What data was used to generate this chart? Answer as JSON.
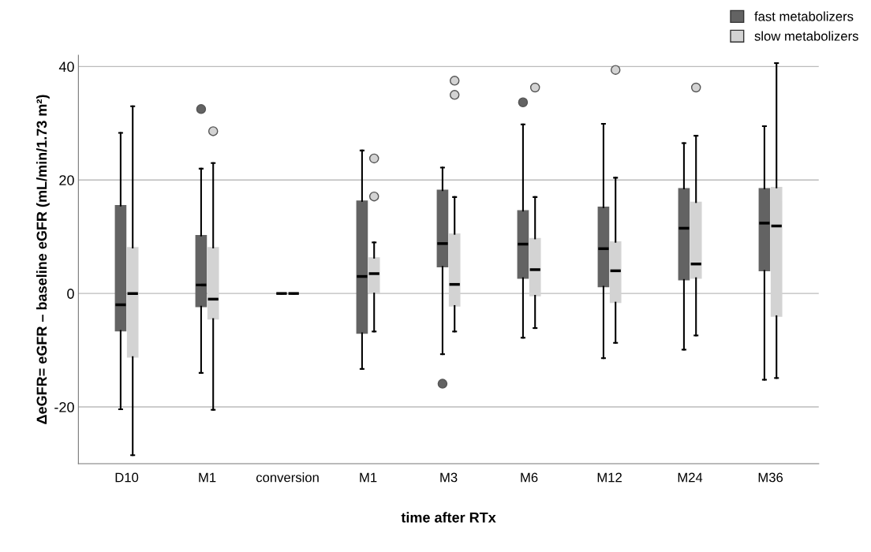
{
  "chart_data": {
    "type": "box",
    "xlabel": "time after RTx",
    "ylabel": "ΔeGFR= eGFR – baseline eGFR (mL/min/1.73 m²)",
    "categories": [
      "D10",
      "M1",
      "conversion",
      "M1",
      "M3",
      "M6",
      "M12",
      "M24",
      "M36"
    ],
    "ylim": [
      -30,
      42
    ],
    "yticks": [
      -20,
      0,
      20,
      40
    ],
    "grid": "y",
    "legend": "top right",
    "series": [
      {
        "name": "fast metabolizers",
        "color": "#636363",
        "boxes": [
          {
            "low": -20.4,
            "q1": -6.6,
            "median": -2,
            "q3": 15.5,
            "high": 28.3
          },
          {
            "low": -14,
            "q1": -2.3,
            "median": 1.5,
            "q3": 10.2,
            "high": 22,
            "outliers": [
              32.5
            ]
          },
          {
            "low": 0,
            "q1": 0,
            "median": 0,
            "q3": 0,
            "high": 0
          },
          {
            "low": -13.3,
            "q1": -7,
            "median": 3,
            "q3": 16.3,
            "high": 25.2
          },
          {
            "low": -10.7,
            "q1": 4.7,
            "median": 8.8,
            "q3": 18.2,
            "high": 22.2,
            "outliers": [
              -15.9
            ]
          },
          {
            "low": -7.8,
            "q1": 2.7,
            "median": 8.7,
            "q3": 14.6,
            "high": 29.8,
            "outliers": [
              33.7
            ]
          },
          {
            "low": -11.4,
            "q1": 1.2,
            "median": 7.9,
            "q3": 15.2,
            "high": 29.9
          },
          {
            "low": -9.9,
            "q1": 2.4,
            "median": 11.5,
            "q3": 18.5,
            "high": 26.5
          },
          {
            "low": -15.2,
            "q1": 4,
            "median": 12.4,
            "q3": 18.5,
            "high": 29.5
          }
        ]
      },
      {
        "name": "slow metabolizers",
        "color": "#d3d3d3",
        "boxes": [
          {
            "low": -28.5,
            "q1": -11.2,
            "median": 0,
            "q3": 8.1,
            "high": 33
          },
          {
            "low": -20.5,
            "q1": -4.5,
            "median": -1,
            "q3": 8.1,
            "high": 23,
            "outliers": [
              28.6
            ]
          },
          {
            "low": 0,
            "q1": 0,
            "median": 0,
            "q3": 0,
            "high": 0
          },
          {
            "low": -6.7,
            "q1": 0,
            "median": 3.5,
            "q3": 6.3,
            "high": 9,
            "outliers": [
              23.8,
              17.1
            ]
          },
          {
            "low": -6.7,
            "q1": -2.2,
            "median": 1.6,
            "q3": 10.5,
            "high": 17,
            "outliers": [
              37.5,
              35
            ]
          },
          {
            "low": -6.1,
            "q1": -0.4,
            "median": 4.2,
            "q3": 9.7,
            "high": 17,
            "outliers": [
              36.3
            ]
          },
          {
            "low": -8.7,
            "q1": -1.6,
            "median": 4,
            "q3": 9.1,
            "high": 20.4,
            "outliers": [
              39.4
            ]
          },
          {
            "low": -7.4,
            "q1": 2.7,
            "median": 5.2,
            "q3": 16.1,
            "high": 27.8,
            "outliers": [
              36.3
            ]
          },
          {
            "low": -14.9,
            "q1": -4,
            "median": 11.9,
            "q3": 18.7,
            "high": 40.6
          }
        ]
      }
    ]
  }
}
